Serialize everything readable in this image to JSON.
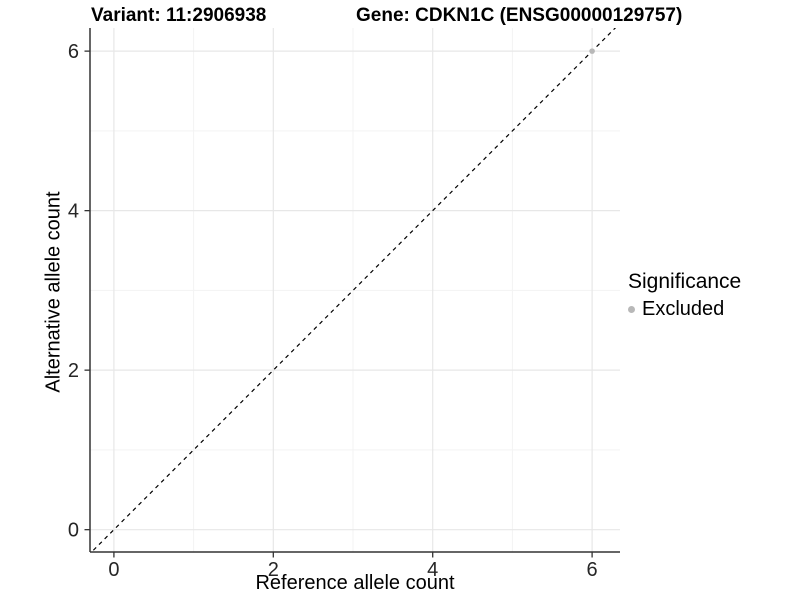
{
  "title": {
    "variant": "Variant: 11:2906938",
    "gene": "Gene: CDKN1C (ENSG00000129757)"
  },
  "chart_data": {
    "type": "scatter",
    "xlabel": "Reference allele count",
    "ylabel": "Alternative allele count",
    "xlim": [
      -0.3,
      6.35
    ],
    "ylim": [
      -0.28,
      6.29
    ],
    "xticks": [
      0,
      2,
      4,
      6
    ],
    "yticks": [
      0,
      2,
      4,
      6
    ],
    "minor_gridlines": [
      1,
      3,
      5
    ],
    "grid": "major and minor, light gray on white panel",
    "reference_line": {
      "slope": 1,
      "intercept": 0,
      "style": "dashed",
      "color": "#000000"
    },
    "series": [
      {
        "name": "Excluded",
        "color": "#b8b8b8",
        "points": [
          [
            6,
            6
          ]
        ]
      }
    ],
    "legend": {
      "position": "right",
      "title": "Significance",
      "items": [
        {
          "label": "Excluded",
          "color": "#b8b8b8",
          "marker": "circle"
        }
      ]
    },
    "colors": {
      "panel_background": "#ffffff",
      "grid_major": "#e7e7e7",
      "grid_minor": "#f3f3f3",
      "axis_line": "#333333",
      "tick_text": "#262626"
    }
  }
}
